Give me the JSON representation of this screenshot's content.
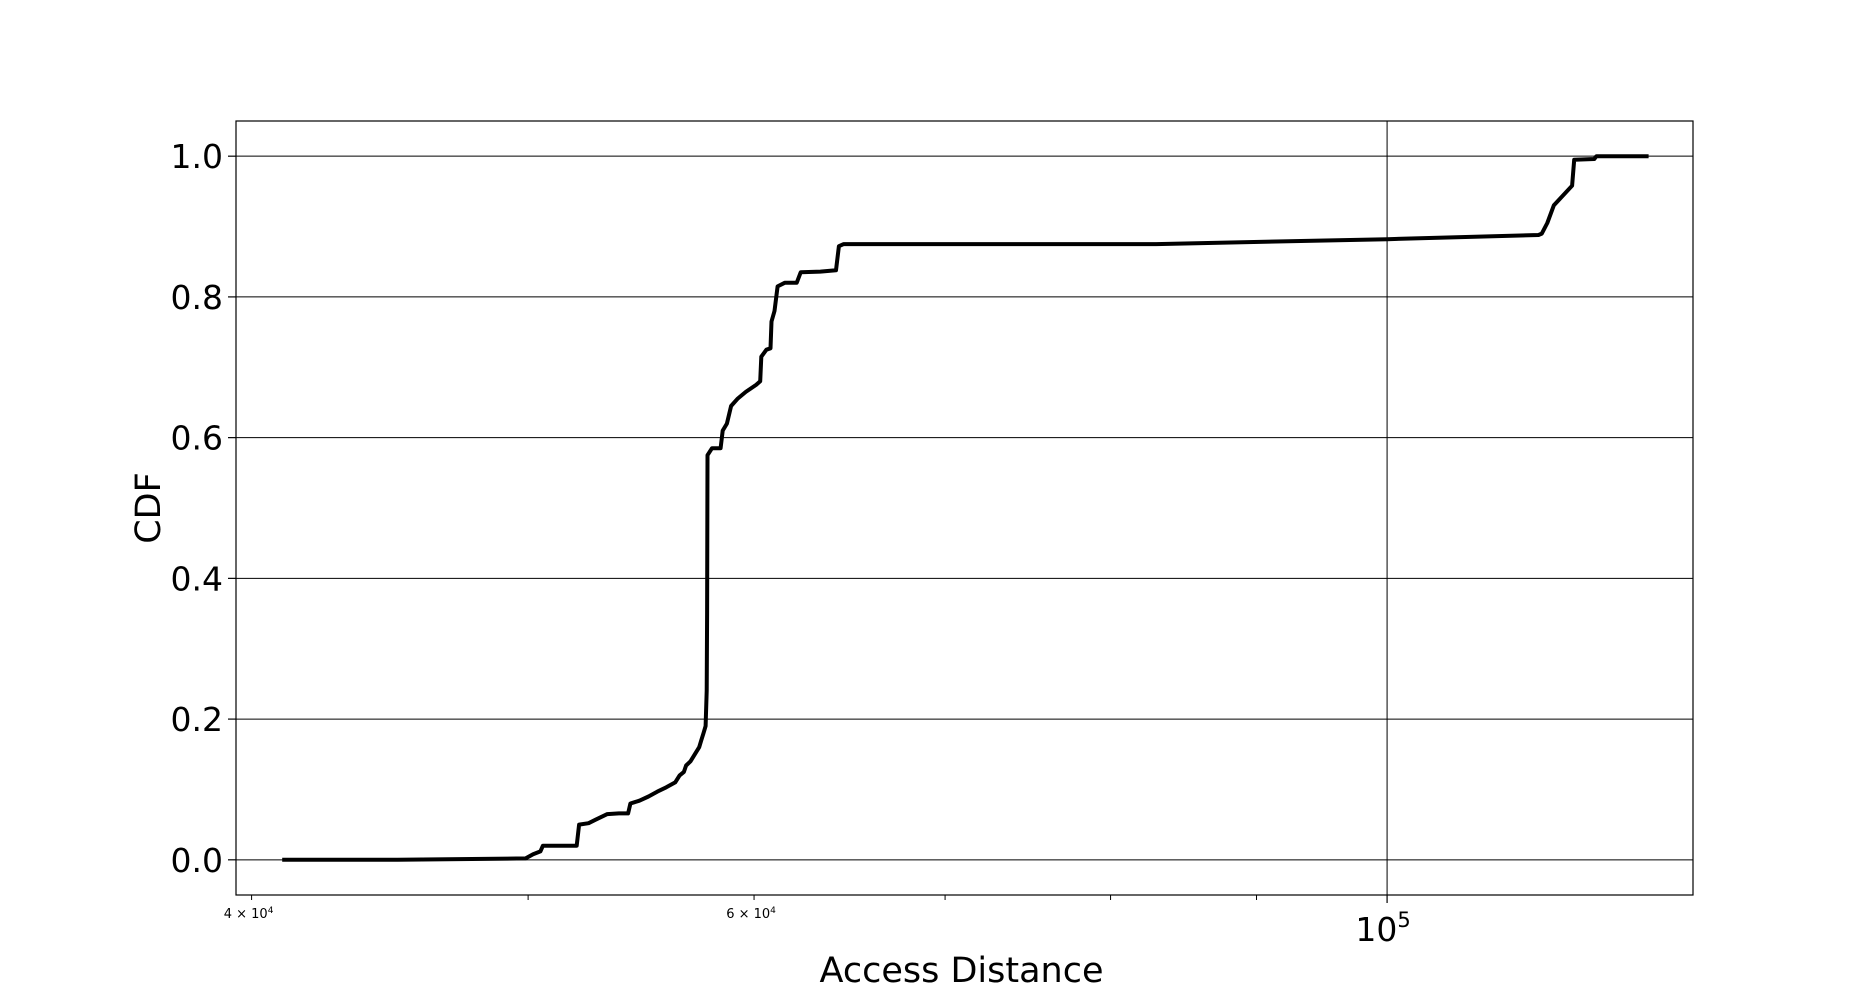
{
  "chart_data": {
    "type": "line",
    "title": "",
    "xlabel": "Access Distance",
    "ylabel": "CDF",
    "x_scale": "log",
    "xlim": [
      39500,
      128000
    ],
    "ylim": [
      -0.05,
      1.05
    ],
    "grid": true,
    "legend": "none",
    "line_color": "#000000",
    "y_ticks": [
      {
        "value": 0.0,
        "label": "0.0"
      },
      {
        "value": 0.2,
        "label": "0.2"
      },
      {
        "value": 0.4,
        "label": "0.4"
      },
      {
        "value": 0.6,
        "label": "0.6"
      },
      {
        "value": 0.8,
        "label": "0.8"
      },
      {
        "value": 1.0,
        "label": "1.0"
      }
    ],
    "x_major_ticks": [
      {
        "value": 100000,
        "base": "10",
        "exp": "5"
      }
    ],
    "x_minor_ticks": [
      {
        "value": 40000,
        "label": "4×10⁴",
        "base": "4 × 10",
        "exp": "4"
      },
      {
        "value": 50000,
        "label": ""
      },
      {
        "value": 60000,
        "label": "6×10⁴",
        "base": "6 × 10",
        "exp": "4"
      },
      {
        "value": 70000,
        "label": ""
      },
      {
        "value": 80000,
        "label": ""
      },
      {
        "value": 90000,
        "label": ""
      }
    ],
    "series": [
      {
        "name": "",
        "points": [
          [
            41000,
            0.0
          ],
          [
            45000,
            0.0
          ],
          [
            49900,
            0.002
          ],
          [
            50200,
            0.008
          ],
          [
            50500,
            0.012
          ],
          [
            50600,
            0.02
          ],
          [
            51500,
            0.02
          ],
          [
            52000,
            0.02
          ],
          [
            52100,
            0.05
          ],
          [
            52500,
            0.052
          ],
          [
            52800,
            0.057
          ],
          [
            53300,
            0.065
          ],
          [
            53800,
            0.066
          ],
          [
            54200,
            0.066
          ],
          [
            54300,
            0.08
          ],
          [
            54700,
            0.084
          ],
          [
            55100,
            0.09
          ],
          [
            55500,
            0.097
          ],
          [
            55900,
            0.103
          ],
          [
            56300,
            0.11
          ],
          [
            56500,
            0.12
          ],
          [
            56700,
            0.125
          ],
          [
            56800,
            0.134
          ],
          [
            57000,
            0.14
          ],
          [
            57200,
            0.15
          ],
          [
            57400,
            0.16
          ],
          [
            57500,
            0.17
          ],
          [
            57600,
            0.18
          ],
          [
            57700,
            0.19
          ],
          [
            57750,
            0.24
          ],
          [
            57770,
            0.35
          ],
          [
            57790,
            0.575
          ],
          [
            58000,
            0.585
          ],
          [
            58400,
            0.585
          ],
          [
            58500,
            0.61
          ],
          [
            58700,
            0.62
          ],
          [
            58900,
            0.645
          ],
          [
            59200,
            0.655
          ],
          [
            59600,
            0.665
          ],
          [
            60100,
            0.675
          ],
          [
            60300,
            0.68
          ],
          [
            60350,
            0.715
          ],
          [
            60600,
            0.725
          ],
          [
            60800,
            0.727
          ],
          [
            60850,
            0.765
          ],
          [
            61000,
            0.78
          ],
          [
            61150,
            0.815
          ],
          [
            61500,
            0.82
          ],
          [
            62100,
            0.82
          ],
          [
            62300,
            0.835
          ],
          [
            63300,
            0.836
          ],
          [
            64100,
            0.838
          ],
          [
            64250,
            0.872
          ],
          [
            64500,
            0.875
          ],
          [
            83000,
            0.875
          ],
          [
            100000,
            0.882
          ],
          [
            113000,
            0.888
          ],
          [
            113300,
            0.89
          ],
          [
            113800,
            0.905
          ],
          [
            114400,
            0.93
          ],
          [
            116100,
            0.958
          ],
          [
            116300,
            0.995
          ],
          [
            118200,
            0.996
          ],
          [
            118400,
            1.0
          ],
          [
            123500,
            1.0
          ]
        ]
      }
    ]
  }
}
